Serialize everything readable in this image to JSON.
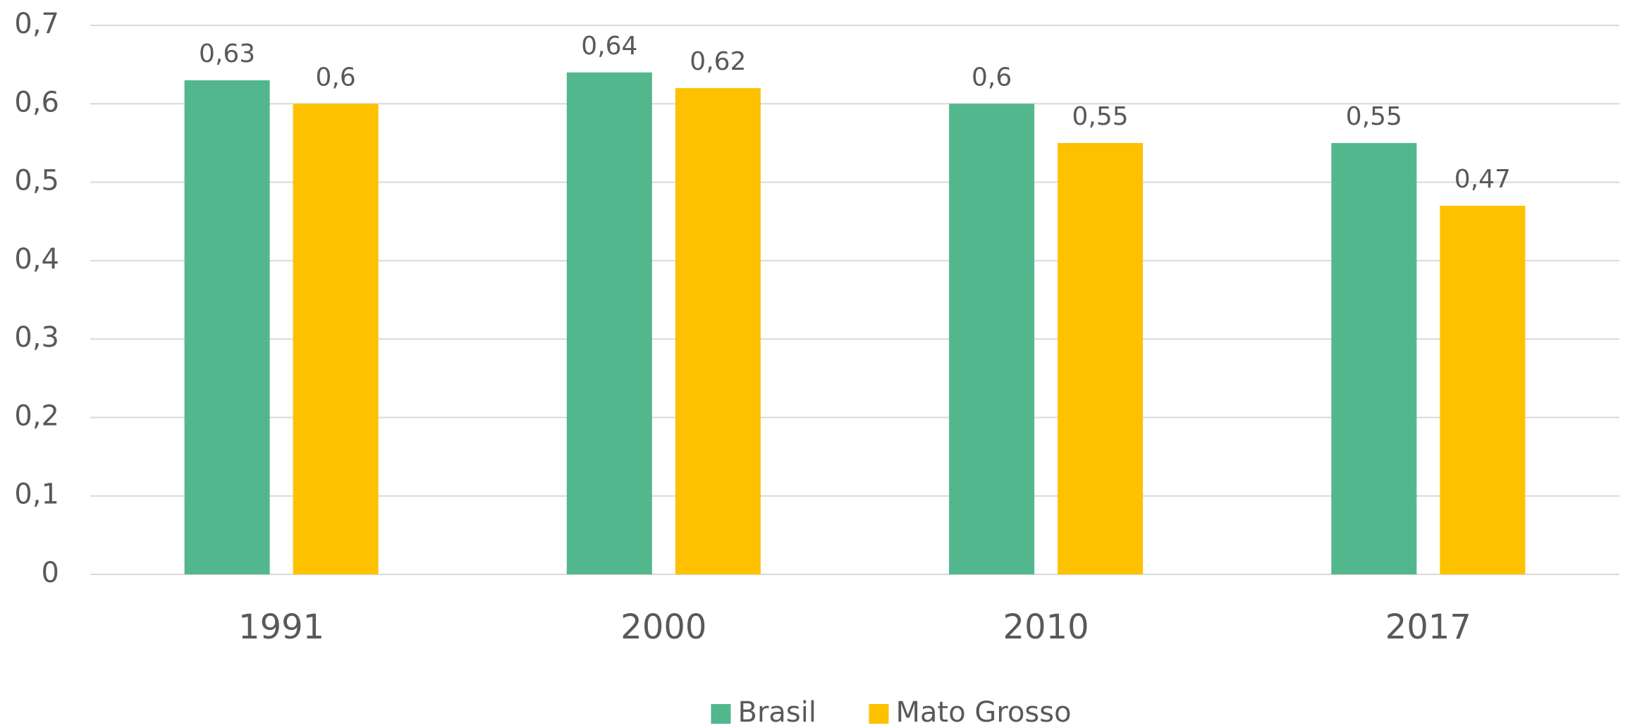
{
  "chart_data": {
    "type": "bar",
    "categories": [
      "1991",
      "2000",
      "2010",
      "2017"
    ],
    "series": [
      {
        "name": "Brasil",
        "color": "#52b78d",
        "values": [
          0.63,
          0.64,
          0.6,
          0.55
        ],
        "value_labels": [
          "0,63",
          "0,64",
          "0,6",
          "0,55"
        ]
      },
      {
        "name": "Mato Grosso",
        "color": "#fdc100",
        "values": [
          0.6,
          0.62,
          0.55,
          0.47
        ],
        "value_labels": [
          "0,6",
          "0,62",
          "0,55",
          "0,47"
        ]
      }
    ],
    "ylim": [
      0,
      0.7
    ],
    "yticks": [
      0,
      {
        "value": 0.1,
        "label": "0,1"
      },
      {
        "value": 0.2,
        "label": "0,2"
      },
      {
        "value": 0.3,
        "label": "0,3"
      },
      {
        "value": 0.4,
        "label": "0,4"
      },
      {
        "value": 0.5,
        "label": "0,5"
      },
      {
        "value": 0.6,
        "label": "0,6"
      },
      {
        "value": 0.7,
        "label": "0,7"
      }
    ],
    "grid": true,
    "legend": "bottom"
  }
}
